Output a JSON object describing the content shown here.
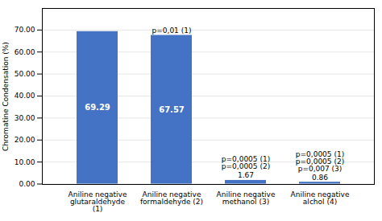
{
  "chart_data": {
    "type": "bar",
    "categories": [
      "Aniline negative\nglutaraldehyde\n(1)",
      "Aniline negative\nformaldehyde (2)",
      "Aniline negative\nmethanol (3)",
      "Aniline negative\nalchol (4)"
    ],
    "values": [
      69.29,
      67.57,
      1.67,
      0.86
    ],
    "color": "#4472c4",
    "ylabel": "Chromatine Condensation (%)",
    "ylim": [
      -0.18,
      79.8
    ],
    "yticks": [
      {
        "value": 0,
        "label": "0.00"
      },
      {
        "value": 10,
        "label": "10.00"
      },
      {
        "value": 20,
        "label": "20.00"
      },
      {
        "value": 30,
        "label": "30.00"
      },
      {
        "value": 40,
        "label": "40.00"
      },
      {
        "value": 50,
        "label": "50.00"
      },
      {
        "value": 60,
        "label": "60.00"
      },
      {
        "value": 70,
        "label": "70.00"
      }
    ],
    "grid": true,
    "data_labels": true,
    "annotations": [
      {
        "category": "Aniline negative\nformaldehyde (2)",
        "lines": [
          "p=0,01 (1)"
        ]
      },
      {
        "category": "Aniline negative\nmethanol (3)",
        "lines": [
          "p=0,0005 (1)",
          "p=0,0005 (2)"
        ]
      },
      {
        "category": "Aniline negative\nalchol (4)",
        "lines": [
          "p=0,0005 (1)",
          "p=0,0005 (2)",
          "p=0,007 (3)"
        ]
      }
    ]
  }
}
